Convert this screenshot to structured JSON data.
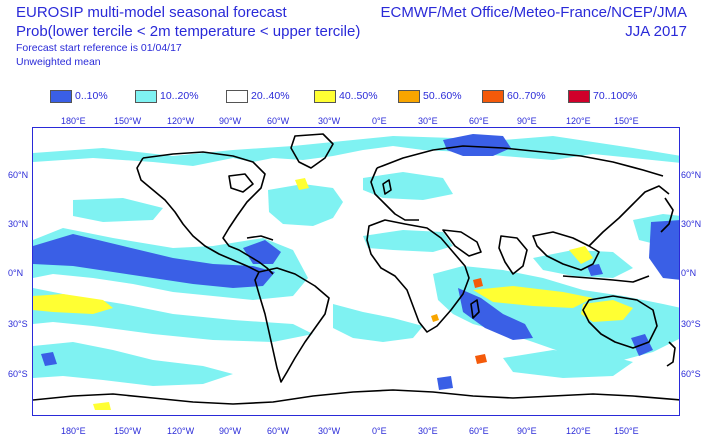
{
  "header": {
    "title_line1": "EUROSIP multi-model seasonal forecast",
    "title_line2": "Prob(lower tercile < 2m temperature < upper tercile)",
    "title_line3": "Forecast start reference is 01/04/17",
    "title_line4": "Unweighted mean",
    "centres": "ECMWF/Met Office/Meteo-France/NCEP/JMA",
    "season": "JJA 2017"
  },
  "legend": [
    {
      "label": "0..10%",
      "color": "#3a5fe6"
    },
    {
      "label": "10..20%",
      "color": "#7ff2f2"
    },
    {
      "label": "20..40%",
      "color": "#ffffff"
    },
    {
      "label": "40..50%",
      "color": "#ffff33"
    },
    {
      "label": "50..60%",
      "color": "#f8a500"
    },
    {
      "label": "60..70%",
      "color": "#f45a0a"
    },
    {
      "label": "70..100%",
      "color": "#d0002a"
    }
  ],
  "axes": {
    "lon_labels": [
      "180°E",
      "150°W",
      "120°W",
      "90°W",
      "60°W",
      "30°W",
      "0°E",
      "30°E",
      "60°E",
      "90°E",
      "120°E",
      "150°E"
    ],
    "lat_labels_left": [
      "60°N",
      "30°N",
      "0°N",
      "30°S",
      "60°S"
    ],
    "lat_labels_right": [
      "60°N",
      "30°N",
      "0°N",
      "30°S",
      "60°S"
    ]
  }
}
